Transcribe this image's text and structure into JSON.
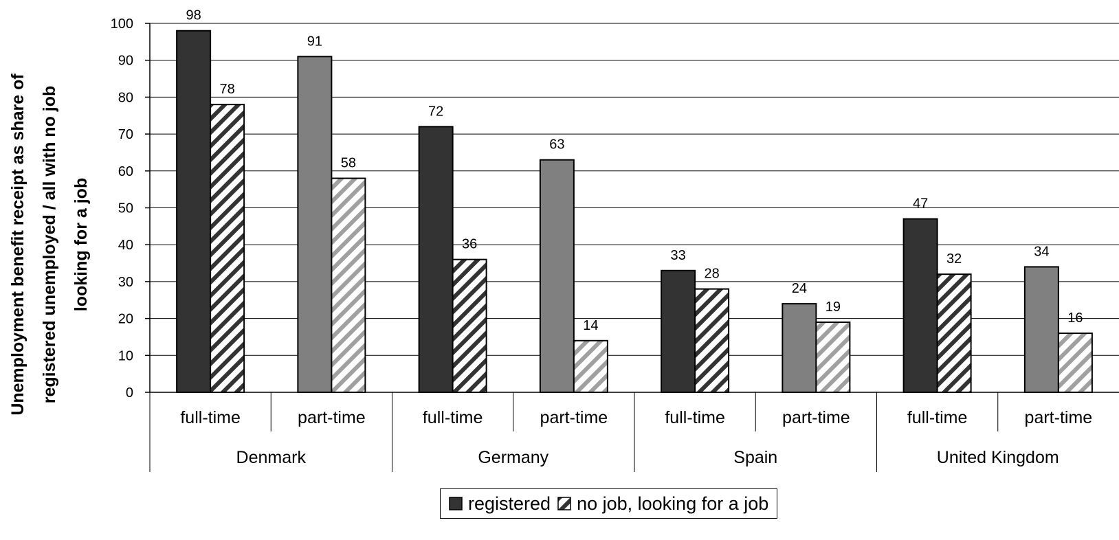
{
  "chart_data": {
    "type": "bar",
    "ylabel": "Unemployment benefit receipt as share of registered unemployed / all with no job looking for a job",
    "ylim": [
      0,
      100
    ],
    "yticks": [
      0,
      10,
      20,
      30,
      40,
      50,
      60,
      70,
      80,
      90,
      100
    ],
    "grid": true,
    "legend_position": "bottom",
    "groups": [
      "Denmark",
      "Germany",
      "Spain",
      "United Kingdom"
    ],
    "subcategories": [
      "full-time",
      "part-time"
    ],
    "categories": [
      "Denmark full-time",
      "Denmark part-time",
      "Germany full-time",
      "Germany part-time",
      "Spain full-time",
      "Spain part-time",
      "United Kingdom full-time",
      "United Kingdom part-time"
    ],
    "series": [
      {
        "name": "registered",
        "values": [
          98,
          91,
          72,
          63,
          33,
          24,
          47,
          34
        ]
      },
      {
        "name": "no job, looking for a job",
        "values": [
          78,
          58,
          36,
          14,
          28,
          19,
          32,
          16
        ]
      }
    ],
    "colors": {
      "registered_full_time": "#333333",
      "registered_part_time": "#808080",
      "hatch_full_time": "#333333",
      "hatch_part_time": "#a0a0a0",
      "grid": "#000000"
    }
  }
}
